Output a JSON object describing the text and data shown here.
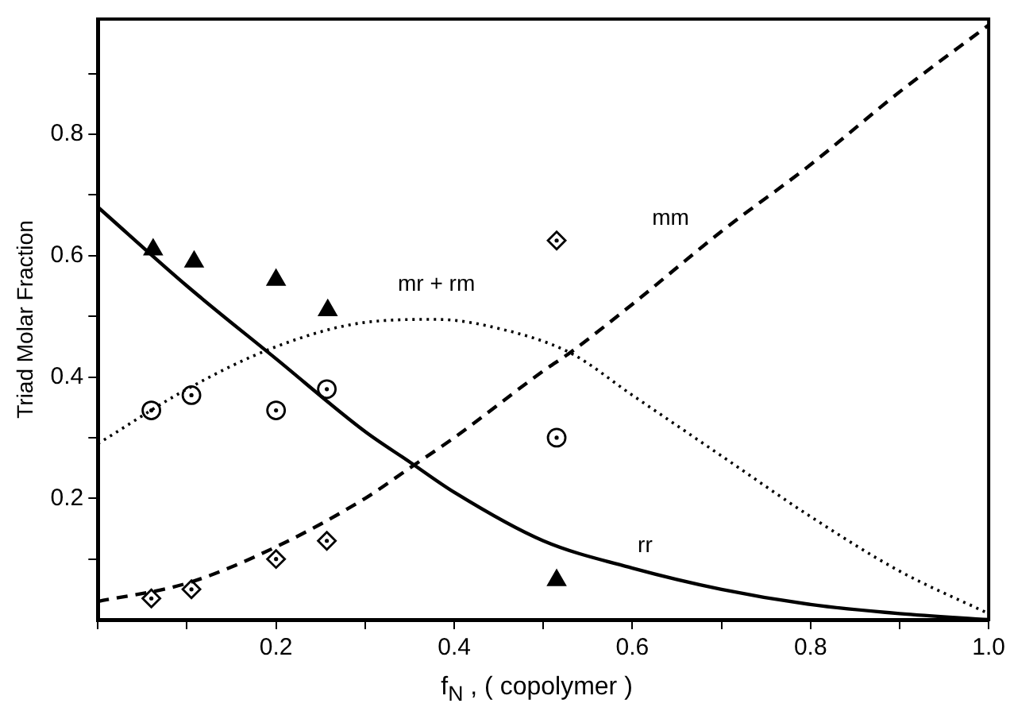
{
  "chart_data": {
    "type": "line",
    "xlabel": "f$_{N}$ , ( copolymer )",
    "ylabel": "Triad Molar Fraction",
    "xlim": [
      0,
      1
    ],
    "ylim": [
      0,
      0.99
    ],
    "xticks": [
      {
        "value": 0,
        "label": null
      },
      {
        "value": 0.1,
        "label": null
      },
      0.2,
      {
        "value": 0.3,
        "label": null
      },
      0.4,
      {
        "value": 0.5,
        "label": null
      },
      0.6,
      {
        "value": 0.7,
        "label": null
      },
      0.8,
      {
        "value": 0.9,
        "label": null
      },
      {
        "value": 1,
        "label": "1.0"
      }
    ],
    "yticks": [
      {
        "value": 0.1,
        "label": null
      },
      0.2,
      {
        "value": 0.3,
        "label": null
      },
      0.4,
      {
        "value": 0.5,
        "label": null
      },
      0.6,
      {
        "value": 0.7,
        "label": null
      },
      0.8,
      {
        "value": 0.9,
        "label": null
      }
    ],
    "grid": false,
    "legend": false,
    "series": [
      {
        "name": "rr",
        "line_style": "solid",
        "color": "#000000",
        "x": [
          0,
          0.1,
          0.2,
          0.3,
          0.35,
          0.4,
          0.5,
          0.6,
          0.7,
          0.8,
          0.9,
          1.0
        ],
        "values": [
          0.68,
          0.55,
          0.43,
          0.31,
          0.26,
          0.21,
          0.13,
          0.085,
          0.05,
          0.025,
          0.01,
          0.0
        ]
      },
      {
        "name": "mr + rm",
        "line_style": "dotted",
        "color": "#000000",
        "x": [
          0,
          0.1,
          0.2,
          0.3,
          0.38,
          0.45,
          0.53,
          0.6,
          0.7,
          0.8,
          0.9,
          1.0
        ],
        "values": [
          0.29,
          0.38,
          0.45,
          0.49,
          0.495,
          0.48,
          0.44,
          0.37,
          0.27,
          0.17,
          0.08,
          0.01
        ]
      },
      {
        "name": "mm",
        "line_style": "dashed",
        "color": "#000000",
        "x": [
          0,
          0.1,
          0.2,
          0.3,
          0.35,
          0.4,
          0.5,
          0.53,
          0.6,
          0.7,
          0.8,
          0.9,
          1.0
        ],
        "values": [
          0.03,
          0.06,
          0.12,
          0.2,
          0.25,
          0.3,
          0.41,
          0.44,
          0.52,
          0.64,
          0.75,
          0.87,
          0.98
        ]
      },
      {
        "type": "scatter",
        "marker": "triangle",
        "color": "#000000",
        "x": [
          0.062,
          0.108,
          0.2,
          0.258,
          0.515
        ],
        "values": [
          0.61,
          0.59,
          0.56,
          0.51,
          0.065
        ]
      },
      {
        "type": "scatter",
        "marker": "circle",
        "color": "#000000",
        "x": [
          0.06,
          0.105,
          0.2,
          0.257,
          0.515
        ],
        "values": [
          0.345,
          0.37,
          0.345,
          0.38,
          0.3
        ]
      },
      {
        "type": "scatter",
        "marker": "diamond",
        "color": "#000000",
        "x": [
          0.06,
          0.105,
          0.2,
          0.257,
          0.515
        ],
        "values": [
          0.035,
          0.05,
          0.1,
          0.13,
          0.625
        ]
      }
    ]
  }
}
